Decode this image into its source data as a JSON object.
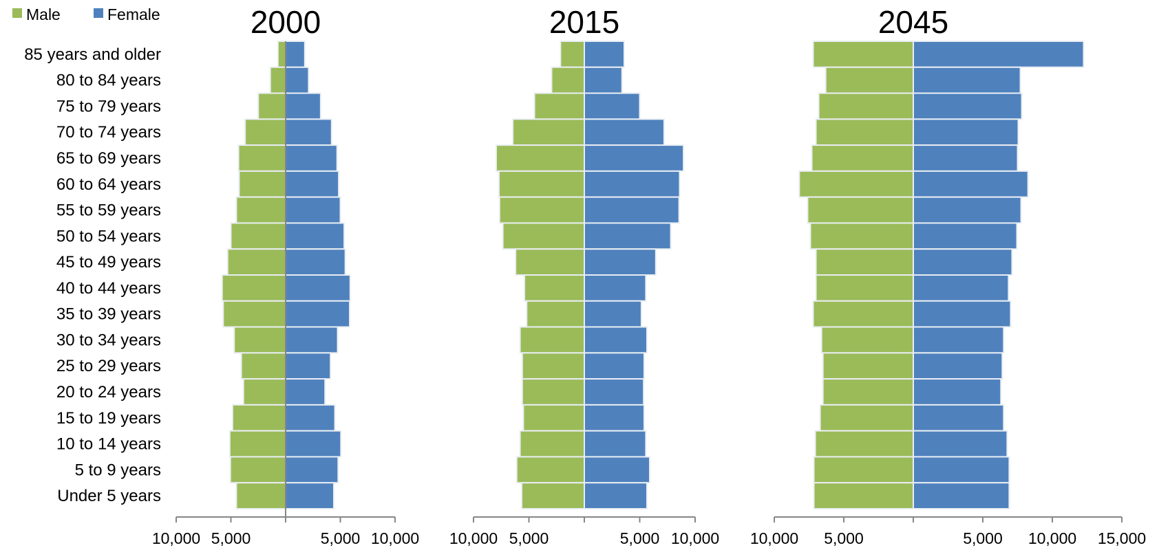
{
  "legend": {
    "male_label": "Male",
    "female_label": "Female"
  },
  "colors": {
    "male": "#9bbb59",
    "female": "#4f81bd",
    "axis": "#868686"
  },
  "chart_data": {
    "type": "bar",
    "orientation": "horizontal",
    "layout": "population-pyramid",
    "categories": [
      "85 years and older",
      "80 to 84 years",
      "75 to 79 years",
      "70 to 74 years",
      "65 to 69 years",
      "60 to 64 years",
      "55 to 59 years",
      "50 to 54 years",
      "45 to 49 years",
      "40 to 44 years",
      "35 to 39 years",
      "30 to 34 years",
      "25 to 29 years",
      "20 to 24 years",
      "15 to 19 years",
      "10 to 14 years",
      "5 to 9 years",
      "Under 5 years"
    ],
    "panels": [
      {
        "title": "2000",
        "xlim": [
          -10000,
          10000
        ],
        "ticks": [
          -10000,
          -5000,
          5000,
          10000
        ],
        "tick_labels": [
          "10,000",
          "5,000",
          "5,000",
          "10,000"
        ],
        "series": [
          {
            "name": "Male",
            "values": [
              700,
              1400,
              2500,
              3700,
              4300,
              4250,
              4500,
              5000,
              5300,
              5800,
              5700,
              4700,
              4050,
              3850,
              4850,
              5100,
              5050,
              4500
            ]
          },
          {
            "name": "Female",
            "values": [
              1750,
              2100,
              3200,
              4200,
              4700,
              4850,
              5000,
              5350,
              5450,
              5900,
              5850,
              4750,
              4100,
              3600,
              4500,
              5050,
              4800,
              4400
            ]
          }
        ]
      },
      {
        "title": "2015",
        "xlim": [
          -10000,
          10000
        ],
        "ticks": [
          -10000,
          -5000,
          5000,
          10000
        ],
        "tick_labels": [
          "10,000",
          "5,000",
          "5,000",
          "10,000"
        ],
        "series": [
          {
            "name": "Male",
            "values": [
              2150,
              2950,
              4500,
              6450,
              7950,
              7700,
              7650,
              7350,
              6200,
              5400,
              5200,
              5800,
              5600,
              5600,
              5500,
              5800,
              6100,
              5650
            ]
          },
          {
            "name": "Female",
            "values": [
              3600,
              3400,
              5000,
              7200,
              8950,
              8600,
              8550,
              7800,
              6450,
              5550,
              5150,
              5650,
              5400,
              5350,
              5400,
              5550,
              5900,
              5650
            ]
          }
        ]
      },
      {
        "title": "2045",
        "xlim": [
          -10000,
          15000
        ],
        "ticks": [
          -10000,
          -5000,
          5000,
          10000,
          15000
        ],
        "tick_labels": [
          "10,000",
          "5,000",
          "5,000",
          "10,000",
          "15,000"
        ],
        "series": [
          {
            "name": "Male",
            "values": [
              7200,
              6300,
              6800,
              7000,
              7300,
              8200,
              7600,
              7400,
              7000,
              7000,
              7200,
              6600,
              6500,
              6500,
              6700,
              7050,
              7150,
              7150
            ]
          },
          {
            "name": "Female",
            "values": [
              12250,
              7700,
              7800,
              7550,
              7500,
              8250,
              7750,
              7450,
              7100,
              6850,
              7000,
              6500,
              6400,
              6300,
              6500,
              6750,
              6900,
              6900
            ]
          }
        ]
      }
    ]
  }
}
